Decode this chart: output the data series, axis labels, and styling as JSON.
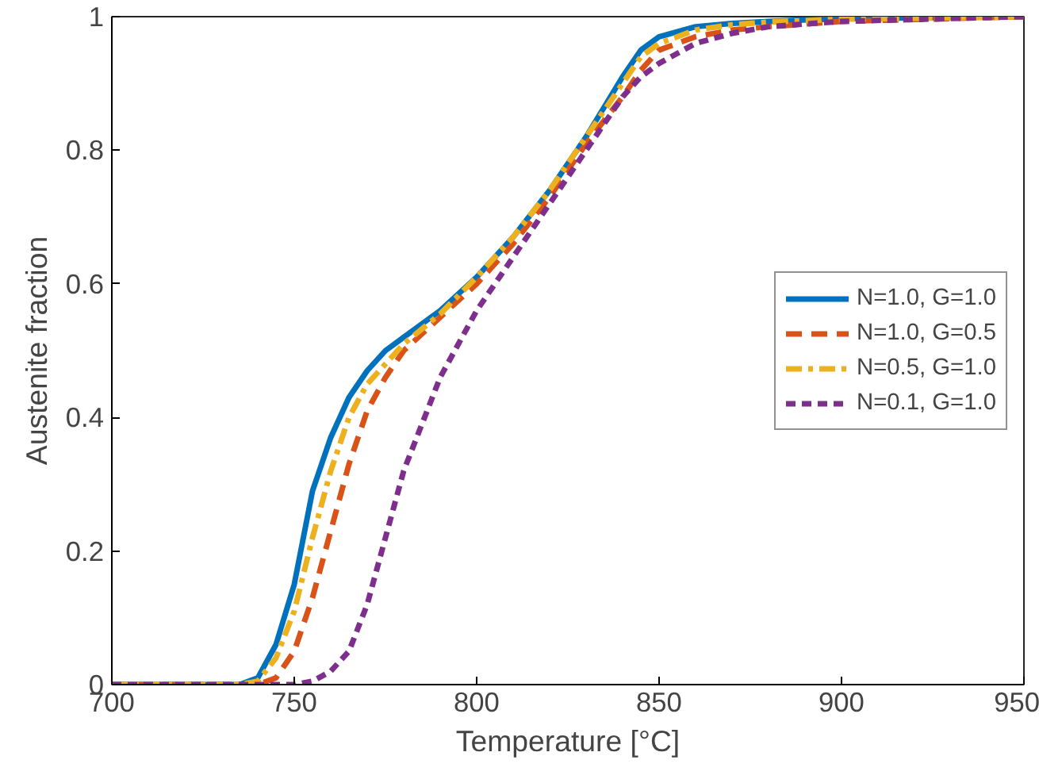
{
  "chart_data": {
    "type": "line",
    "xlabel": "Temperature [°C]",
    "ylabel": "Austenite fraction",
    "xlim": [
      700,
      950
    ],
    "xticks": [
      700,
      750,
      800,
      850,
      900,
      950
    ],
    "ylim": [
      0,
      1
    ],
    "yticks": [
      0,
      {
        "value": 0.2,
        "label": "0.2"
      },
      {
        "value": 0.4,
        "label": "0.4"
      },
      {
        "value": 0.6,
        "label": "0.6"
      },
      {
        "value": 0.8,
        "label": "0.8"
      },
      1
    ],
    "grid": false,
    "legend": "right",
    "marker": "none",
    "x": [
      700,
      720,
      735,
      740,
      745,
      750,
      755,
      760,
      765,
      770,
      775,
      780,
      790,
      800,
      810,
      820,
      830,
      840,
      845,
      850,
      860,
      870,
      880,
      900,
      950
    ],
    "series": [
      {
        "name": "N=1.0, G=1.0",
        "color": "#0072bd",
        "line_style": "solid",
        "values": [
          0,
          0,
          0,
          0.01,
          0.06,
          0.15,
          0.29,
          0.37,
          0.43,
          0.47,
          0.5,
          0.52,
          0.56,
          0.61,
          0.67,
          0.74,
          0.82,
          0.91,
          0.95,
          0.97,
          0.985,
          0.99,
          0.993,
          0.997,
          1
        ]
      },
      {
        "name": "N=1.0, G=0.5",
        "color": "#d95319",
        "line_style": "dashed",
        "values": [
          0,
          0,
          0,
          0,
          0.01,
          0.05,
          0.13,
          0.23,
          0.33,
          0.41,
          0.46,
          0.5,
          0.55,
          0.6,
          0.66,
          0.73,
          0.81,
          0.88,
          0.92,
          0.95,
          0.97,
          0.98,
          0.985,
          0.993,
          1
        ]
      },
      {
        "name": "N=0.5, G=1.0",
        "color": "#edb120",
        "line_style": "dashdot",
        "values": [
          0,
          0,
          0,
          0.005,
          0.04,
          0.11,
          0.22,
          0.32,
          0.4,
          0.45,
          0.48,
          0.51,
          0.555,
          0.61,
          0.67,
          0.74,
          0.82,
          0.9,
          0.94,
          0.96,
          0.98,
          0.988,
          0.992,
          0.996,
          1
        ]
      },
      {
        "name": "N=0.1, G=1.0",
        "color": "#7e2f8e",
        "line_style": "dashed_short",
        "values": [
          0,
          0,
          0,
          0,
          0,
          0,
          0.005,
          0.02,
          0.05,
          0.12,
          0.22,
          0.32,
          0.46,
          0.56,
          0.64,
          0.72,
          0.8,
          0.88,
          0.91,
          0.93,
          0.96,
          0.975,
          0.985,
          0.993,
          1
        ]
      }
    ]
  }
}
